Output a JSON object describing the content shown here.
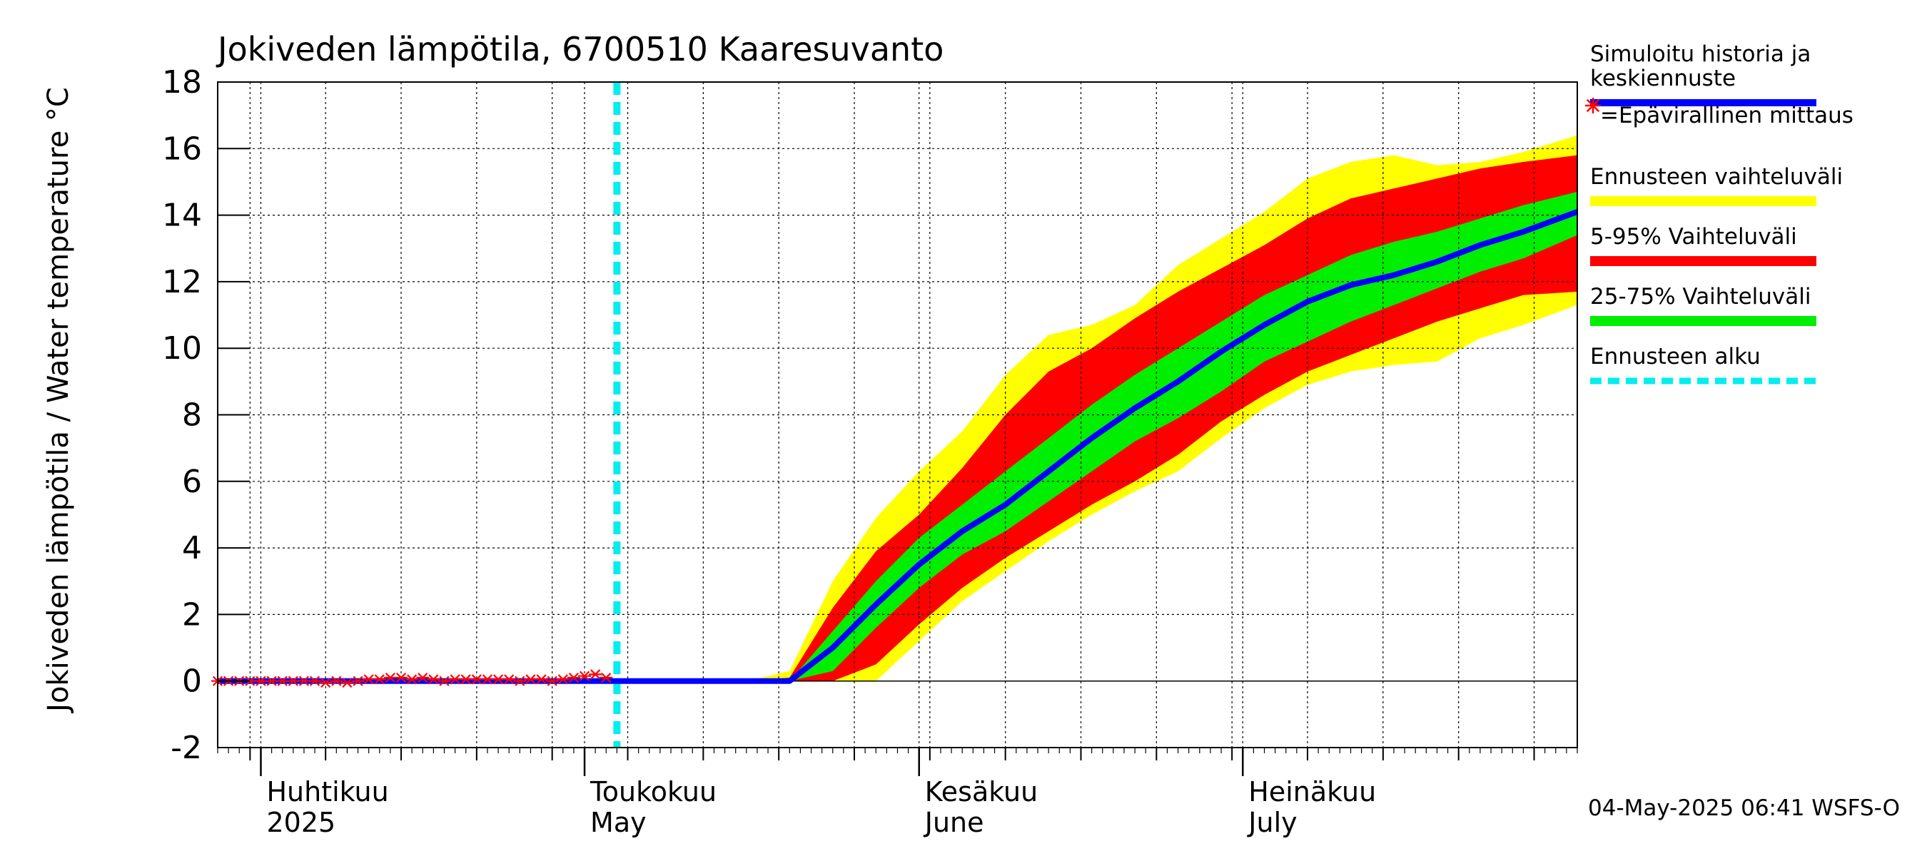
{
  "chart_data": {
    "type": "area",
    "title": "Jokiveden lämpötila, 6700510 Kaaresuvanto",
    "ylabel": "Jokiveden lämpötila / Water temperature   °C",
    "ylim": [
      -2,
      18
    ],
    "yticks": [
      -2,
      0,
      2,
      4,
      6,
      8,
      10,
      12,
      14,
      16,
      18
    ],
    "x_start": "2025-03-28",
    "x_end": "2025-08-01",
    "months": [
      {
        "date": "2025-04-01",
        "label1": "Huhtikuu",
        "label2": "2025"
      },
      {
        "date": "2025-05-01",
        "label1": "Toukokuu",
        "label2": "May"
      },
      {
        "date": "2025-06-01",
        "label1": "Kesäkuu",
        "label2": "June"
      },
      {
        "date": "2025-07-01",
        "label1": "Heinäkuu",
        "label2": "July"
      }
    ],
    "forecast_start": "2025-05-04",
    "series": {
      "dates": [
        "2025-03-28",
        "2025-04-15",
        "2025-05-04",
        "2025-05-08",
        "2025-05-12",
        "2025-05-16",
        "2025-05-20",
        "2025-05-24",
        "2025-05-28",
        "2025-06-01",
        "2025-06-05",
        "2025-06-09",
        "2025-06-13",
        "2025-06-17",
        "2025-06-21",
        "2025-06-25",
        "2025-06-29",
        "2025-07-03",
        "2025-07-07",
        "2025-07-11",
        "2025-07-15",
        "2025-07-19",
        "2025-07-23",
        "2025-07-27",
        "2025-08-01"
      ],
      "median": [
        0.0,
        0.0,
        0.0,
        0.0,
        0.0,
        0.0,
        0.0,
        1.0,
        2.3,
        3.5,
        4.5,
        5.3,
        6.3,
        7.3,
        8.2,
        9.0,
        9.9,
        10.7,
        11.4,
        11.9,
        12.2,
        12.6,
        13.1,
        13.5,
        14.1
      ],
      "p25": [
        0.0,
        0.0,
        0.0,
        0.0,
        0.0,
        0.0,
        0.0,
        0.3,
        1.6,
        2.8,
        3.8,
        4.5,
        5.4,
        6.3,
        7.2,
        7.9,
        8.7,
        9.6,
        10.2,
        10.8,
        11.3,
        11.8,
        12.3,
        12.7,
        13.4
      ],
      "p75": [
        0.0,
        0.0,
        0.0,
        0.0,
        0.0,
        0.0,
        0.0,
        1.5,
        3.0,
        4.3,
        5.3,
        6.3,
        7.3,
        8.3,
        9.2,
        10.0,
        10.8,
        11.6,
        12.2,
        12.8,
        13.2,
        13.5,
        13.9,
        14.3,
        14.7
      ],
      "p5": [
        0.0,
        0.0,
        0.0,
        0.0,
        0.0,
        0.0,
        0.0,
        0.0,
        0.5,
        1.7,
        2.8,
        3.7,
        4.5,
        5.3,
        6.0,
        6.8,
        7.8,
        8.6,
        9.3,
        9.8,
        10.3,
        10.8,
        11.2,
        11.6,
        11.7
      ],
      "p95": [
        0.0,
        0.0,
        0.0,
        0.0,
        0.0,
        0.0,
        0.1,
        2.2,
        3.9,
        5.0,
        6.4,
        8.0,
        9.3,
        10.0,
        10.9,
        11.7,
        12.4,
        13.1,
        13.9,
        14.5,
        14.8,
        15.1,
        15.4,
        15.6,
        15.8
      ],
      "min": [
        0.0,
        0.0,
        0.0,
        0.0,
        0.0,
        0.0,
        0.0,
        0.0,
        0.0,
        1.2,
        2.4,
        3.3,
        4.2,
        5.0,
        5.7,
        6.3,
        7.3,
        8.2,
        8.9,
        9.3,
        9.5,
        9.6,
        10.3,
        10.7,
        11.3
      ],
      "max": [
        0.0,
        0.0,
        0.0,
        0.0,
        0.0,
        0.0,
        0.3,
        3.0,
        4.9,
        6.3,
        7.5,
        9.2,
        10.4,
        10.7,
        11.3,
        12.5,
        13.3,
        14.1,
        15.1,
        15.6,
        15.8,
        15.5,
        15.6,
        15.9,
        16.4
      ]
    },
    "observations": {
      "dates": [
        "2025-03-28",
        "2025-03-29",
        "2025-03-30",
        "2025-03-31",
        "2025-04-01",
        "2025-04-02",
        "2025-04-03",
        "2025-04-04",
        "2025-04-05",
        "2025-04-06",
        "2025-04-07",
        "2025-04-08",
        "2025-04-09",
        "2025-04-10",
        "2025-04-11",
        "2025-04-12",
        "2025-04-13",
        "2025-04-14",
        "2025-04-15",
        "2025-04-16",
        "2025-04-17",
        "2025-04-18",
        "2025-04-19",
        "2025-04-20",
        "2025-04-21",
        "2025-04-22",
        "2025-04-23",
        "2025-04-24",
        "2025-04-25",
        "2025-04-26",
        "2025-04-27",
        "2025-04-28",
        "2025-04-29",
        "2025-04-30",
        "2025-05-01",
        "2025-05-02",
        "2025-05-03"
      ],
      "values": [
        0.0,
        0.0,
        0.0,
        0.0,
        0.0,
        0.0,
        0.0,
        0.0,
        0.0,
        0.0,
        -0.05,
        0.0,
        -0.05,
        0.0,
        0.05,
        0.05,
        0.1,
        0.1,
        0.05,
        0.1,
        0.05,
        0.0,
        0.05,
        0.05,
        0.05,
        0.05,
        0.05,
        0.05,
        0.0,
        0.05,
        0.05,
        0.0,
        0.05,
        0.1,
        0.15,
        0.2,
        0.1
      ]
    },
    "colors": {
      "range": "#ffff00",
      "p5_95": "#ff0000",
      "p25_75": "#00ee00",
      "median": "#0000ff",
      "forecast_start": "#00eeee",
      "observation": "#ff0000"
    },
    "legend": [
      {
        "label": "Simuloitu historia ja keskiennuste",
        "lines": [
          "Simuloitu historia ja",
          "keskiennuste"
        ],
        "color": "#0000ff",
        "style": "line"
      },
      {
        "label": "=Epävirallinen mittaus",
        "lines": [
          "=Epävirallinen mittaus"
        ],
        "color": "#ff0000",
        "style": "star"
      },
      {
        "label": "Ennusteen vaihteluväli",
        "lines": [
          "Ennusteen vaihteluväli"
        ],
        "color": "#ffff00",
        "style": "band"
      },
      {
        "label": "5-95% Vaihteluväli",
        "lines": [
          "5-95% Vaihteluväli"
        ],
        "color": "#ff0000",
        "style": "band"
      },
      {
        "label": "25-75% Vaihteluväli",
        "lines": [
          "25-75% Vaihteluväli"
        ],
        "color": "#00ee00",
        "style": "band"
      },
      {
        "label": "Ennusteen alku",
        "lines": [
          "Ennusteen alku"
        ],
        "color": "#00eeee",
        "style": "dashed"
      }
    ],
    "grid": true,
    "footer": "04-May-2025 06:41 WSFS-O"
  }
}
